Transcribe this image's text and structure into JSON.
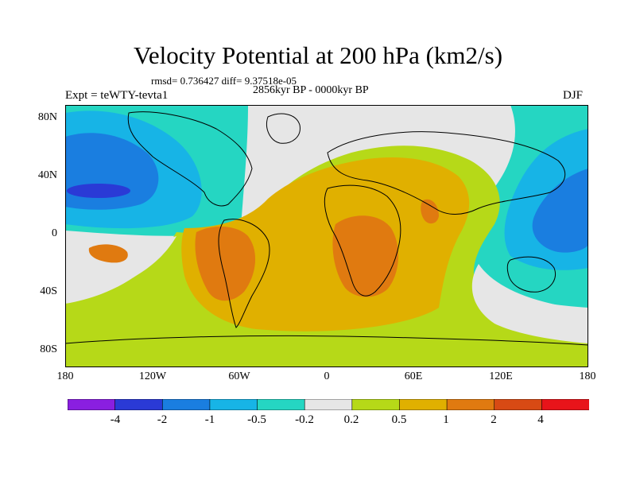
{
  "title": "Velocity Potential at 200 hPa (km2/s)",
  "stats": "rmsd= 0.736427 diff= 9.37518e-05",
  "subtitle": "2856kyr BP - 0000kyr BP",
  "experiment": "Expt = teWTY-tevta1",
  "season": "DJF",
  "lat_labels": [
    "80N",
    "40N",
    "0",
    "40S",
    "80S"
  ],
  "lon_labels": [
    "180",
    "120W",
    "60W",
    "0",
    "60E",
    "120E",
    "180"
  ],
  "colorbar": {
    "labels": [
      "-4",
      "-2",
      "-1",
      "-0.5",
      "-0.2",
      "0.2",
      "0.5",
      "1",
      "2",
      "4"
    ],
    "colors": [
      "#8a1fe0",
      "#2a3ad6",
      "#1a7ee0",
      "#17b4e6",
      "#25d6c2",
      "#e6e6e6",
      "#b6d918",
      "#e0b000",
      "#e07a10",
      "#d84a14",
      "#e8141a"
    ]
  },
  "field_colors": {
    "dark_blue": "#2a3ad6",
    "blue": "#1a7ee0",
    "cyan": "#17b4e6",
    "teal": "#25d6c2",
    "neutral": "#e6e6e6",
    "yellow_green": "#b6d918",
    "gold": "#e0b000",
    "orange": "#e07a10"
  }
}
